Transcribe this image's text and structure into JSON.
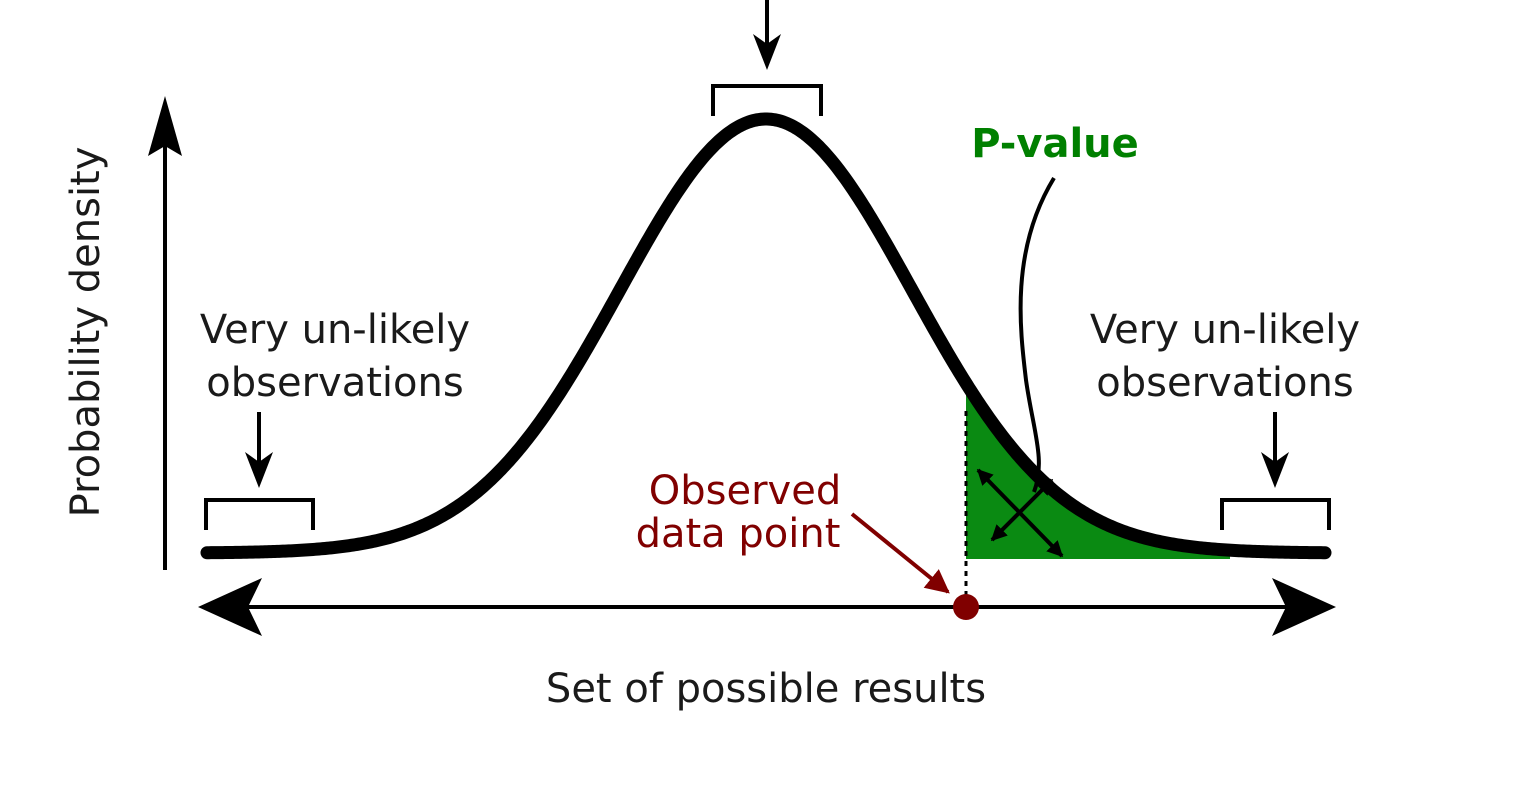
{
  "labels": {
    "y_axis": "Probability density",
    "x_axis": "Set of possible results",
    "left_tail_line1": "Very un-likely",
    "left_tail_line2": "observations",
    "right_tail_line1": "Very un-likely",
    "right_tail_line2": "observations",
    "p_value": "P-value",
    "observed_line1": "Observed",
    "observed_line2": "data point"
  },
  "colors": {
    "curve": "#000000",
    "p_value": "#008000",
    "tail_fill": "#0a8a12",
    "observed": "#800000",
    "text": "#1a1a1a"
  }
}
